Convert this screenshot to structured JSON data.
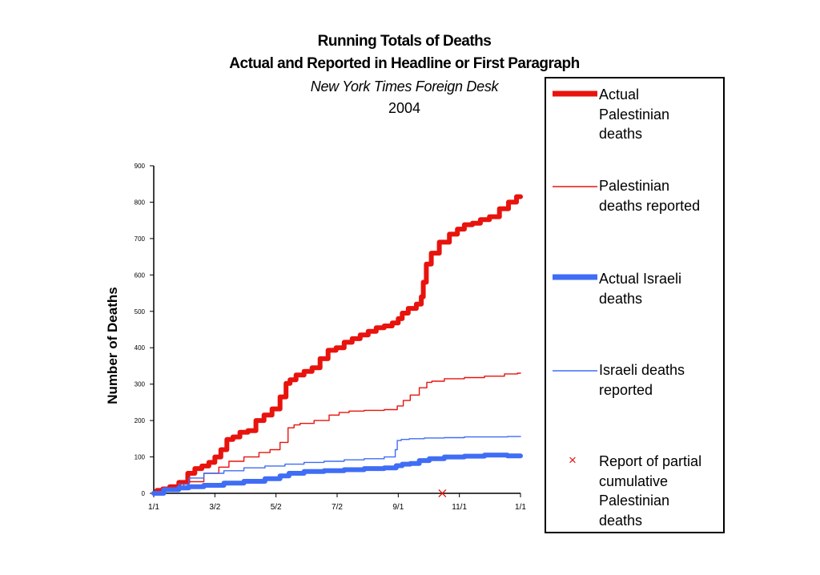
{
  "chart_data": {
    "type": "line",
    "title": "Running Totals of Deaths",
    "subtitle": "Actual and Reported in Headline or First Paragraph",
    "source": "New York Times Foreign Desk",
    "year": "2004",
    "ylabel": "Number of Deaths",
    "xlabel": "",
    "ylim": [
      0,
      900
    ],
    "xlim": [
      0,
      366
    ],
    "yticks": [
      0,
      100,
      200,
      300,
      400,
      500,
      600,
      700,
      800,
      900
    ],
    "xtick_labels": [
      "1/1",
      "3/2",
      "5/2",
      "7/2",
      "9/1",
      "11/1",
      "1/1"
    ],
    "xtick_days": [
      0,
      61,
      122,
      183,
      244,
      305,
      366
    ],
    "grid": false,
    "legend_position": "right",
    "series": [
      {
        "name": "Actual Palestinian deaths",
        "color": "#e8130d",
        "style": "thick",
        "x": [
          0,
          6,
          12,
          20,
          30,
          38,
          44,
          52,
          58,
          64,
          70,
          76,
          82,
          90,
          98,
          106,
          114,
          122,
          130,
          134,
          138,
          146,
          154,
          162,
          170,
          178,
          186,
          194,
          202,
          210,
          218,
          226,
          234,
          242,
          246,
          250,
          258,
          266,
          268,
          270,
          274,
          280,
          290,
          300,
          306,
          314,
          322,
          330,
          340,
          350,
          358,
          366
        ],
        "y": [
          0,
          8,
          12,
          18,
          30,
          55,
          68,
          75,
          85,
          100,
          120,
          148,
          155,
          168,
          172,
          200,
          215,
          232,
          265,
          302,
          312,
          325,
          335,
          345,
          370,
          393,
          400,
          415,
          425,
          435,
          445,
          455,
          460,
          468,
          480,
          495,
          508,
          520,
          540,
          580,
          630,
          660,
          690,
          712,
          726,
          738,
          742,
          752,
          760,
          782,
          800,
          815
        ]
      },
      {
        "name": "Palestinian deaths reported",
        "color": "#e8130d",
        "style": "thin",
        "x": [
          0,
          20,
          40,
          60,
          70,
          80,
          100,
          110,
          122,
          130,
          138,
          142,
          150,
          170,
          180,
          190,
          200,
          220,
          240,
          246,
          252,
          260,
          270,
          275,
          280,
          300,
          320,
          340,
          360,
          366
        ],
        "y": [
          0,
          12,
          32,
          55,
          72,
          88,
          100,
          112,
          120,
          140,
          180,
          188,
          192,
          200,
          215,
          222,
          226,
          228,
          230,
          240,
          255,
          270,
          290,
          305,
          308,
          315,
          318,
          322,
          328,
          330
        ]
      },
      {
        "name": "Actual Israeli deaths",
        "color": "#3f6df5",
        "style": "thick",
        "x": [
          0,
          20,
          30,
          40,
          60,
          80,
          100,
          122,
          130,
          140,
          160,
          180,
          200,
          220,
          240,
          244,
          252,
          260,
          270,
          280,
          300,
          320,
          340,
          366
        ],
        "y": [
          0,
          10,
          15,
          18,
          22,
          28,
          33,
          40,
          48,
          55,
          60,
          62,
          65,
          68,
          70,
          76,
          80,
          82,
          90,
          95,
          100,
          102,
          105,
          103
        ]
      },
      {
        "name": "Israeli deaths reported",
        "color": "#3f6df5",
        "style": "thin",
        "x": [
          0,
          20,
          30,
          40,
          60,
          80,
          100,
          122,
          140,
          160,
          180,
          200,
          220,
          240,
          242,
          244,
          250,
          260,
          280,
          300,
          320,
          340,
          366
        ],
        "y": [
          0,
          10,
          25,
          42,
          55,
          62,
          70,
          75,
          80,
          85,
          88,
          92,
          95,
          100,
          120,
          145,
          148,
          150,
          152,
          153,
          155,
          155,
          156
        ]
      }
    ],
    "markers": [
      {
        "name": "Report of partial cumulative Palestinian deaths",
        "symbol": "x",
        "color": "#e8130d",
        "x": [
          288
        ],
        "y": [
          0
        ]
      }
    ]
  },
  "legend": {
    "items": [
      {
        "lines": [
          "Actual",
          "Palestinian",
          "deaths"
        ]
      },
      {
        "lines": [
          "Palestinian",
          "deaths reported"
        ]
      },
      {
        "lines": [
          "Actual Israeli",
          "deaths"
        ]
      },
      {
        "lines": [
          "Israeli deaths",
          "reported"
        ]
      },
      {
        "lines": [
          "Report of partial",
          "cumulative",
          "Palestinian",
          "deaths"
        ],
        "symbol": "×"
      }
    ]
  }
}
